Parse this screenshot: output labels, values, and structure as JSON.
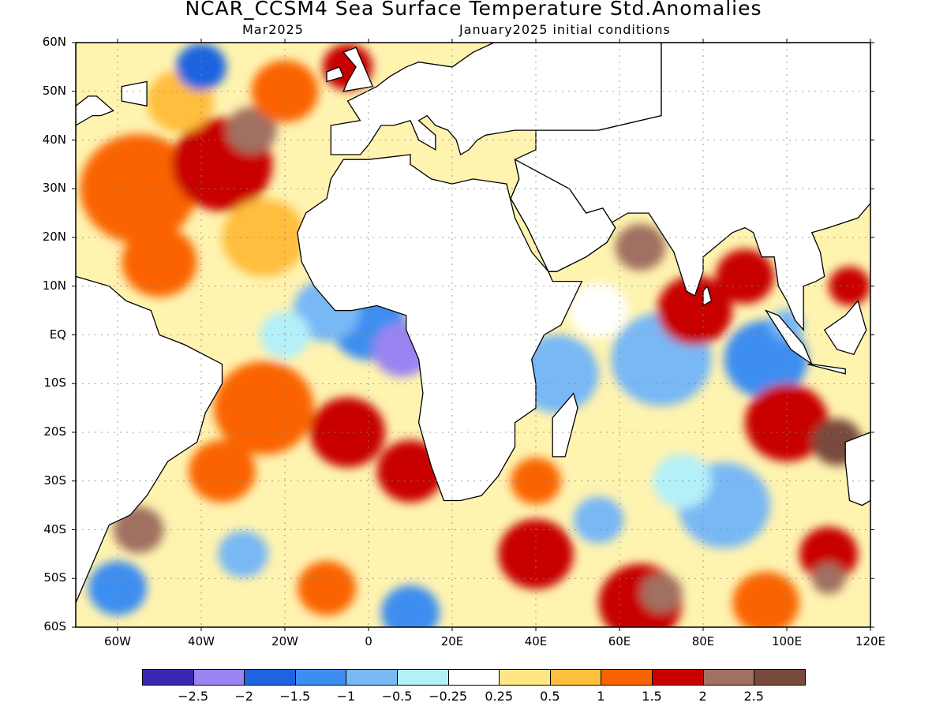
{
  "title": "NCAR_CCSM4 Sea Surface Temperature Std.Anomalies",
  "subtitle_left": "Mar2025",
  "subtitle_right": "January2025 initial conditions",
  "map": {
    "lon_min": -70,
    "lon_max": 120,
    "lat_min": -60,
    "lat_max": 60,
    "lat_ticks": [
      {
        "lat": 60,
        "label": "60N"
      },
      {
        "lat": 50,
        "label": "50N"
      },
      {
        "lat": 40,
        "label": "40N"
      },
      {
        "lat": 30,
        "label": "30N"
      },
      {
        "lat": 20,
        "label": "20N"
      },
      {
        "lat": 10,
        "label": "10N"
      },
      {
        "lat": 0,
        "label": "EQ"
      },
      {
        "lat": -10,
        "label": "10S"
      },
      {
        "lat": -20,
        "label": "20S"
      },
      {
        "lat": -30,
        "label": "30S"
      },
      {
        "lat": -40,
        "label": "40S"
      },
      {
        "lat": -50,
        "label": "50S"
      },
      {
        "lat": -60,
        "label": "60S"
      }
    ],
    "lon_ticks": [
      {
        "lon": -60,
        "label": "60W"
      },
      {
        "lon": -40,
        "label": "40W"
      },
      {
        "lon": -20,
        "label": "20W"
      },
      {
        "lon": 0,
        "label": "0"
      },
      {
        "lon": 20,
        "label": "20E"
      },
      {
        "lon": 40,
        "label": "40E"
      },
      {
        "lon": 60,
        "label": "60E"
      },
      {
        "lon": 80,
        "label": "80E"
      },
      {
        "lon": 100,
        "label": "100E"
      },
      {
        "lon": 120,
        "label": "120E"
      }
    ],
    "land_color": "#ffffff",
    "coast_color": "#000000",
    "anomaly_patches": [
      {
        "lon": -55,
        "lat": 30,
        "r": 14,
        "class": 9
      },
      {
        "lon": -35,
        "lat": 35,
        "r": 12,
        "class": 10
      },
      {
        "lon": -28,
        "lat": 42,
        "r": 6,
        "class": 11
      },
      {
        "lon": -50,
        "lat": 15,
        "r": 9,
        "class": 9
      },
      {
        "lon": -45,
        "lat": 48,
        "r": 8,
        "class": 8
      },
      {
        "lon": -40,
        "lat": 55,
        "r": 6,
        "class": 2
      },
      {
        "lon": -20,
        "lat": 50,
        "r": 8,
        "class": 9
      },
      {
        "lon": -5,
        "lat": 55,
        "r": 6,
        "class": 10
      },
      {
        "lon": -25,
        "lat": 20,
        "r": 10,
        "class": 8
      },
      {
        "lon": 0,
        "lat": 2,
        "r": 9,
        "class": 3
      },
      {
        "lon": 8,
        "lat": -3,
        "r": 7,
        "class": 1
      },
      {
        "lon": -10,
        "lat": 5,
        "r": 8,
        "class": 4
      },
      {
        "lon": -20,
        "lat": 0,
        "r": 6,
        "class": 5
      },
      {
        "lon": -25,
        "lat": -15,
        "r": 12,
        "class": 9
      },
      {
        "lon": -5,
        "lat": -20,
        "r": 9,
        "class": 10
      },
      {
        "lon": 10,
        "lat": -28,
        "r": 8,
        "class": 10
      },
      {
        "lon": -35,
        "lat": -28,
        "r": 8,
        "class": 9
      },
      {
        "lon": -55,
        "lat": -40,
        "r": 6,
        "class": 11
      },
      {
        "lon": -60,
        "lat": -52,
        "r": 7,
        "class": 3
      },
      {
        "lon": -30,
        "lat": -45,
        "r": 6,
        "class": 4
      },
      {
        "lon": -10,
        "lat": -52,
        "r": 7,
        "class": 9
      },
      {
        "lon": 10,
        "lat": -57,
        "r": 7,
        "class": 3
      },
      {
        "lon": 45,
        "lat": -8,
        "r": 10,
        "class": 4
      },
      {
        "lon": 70,
        "lat": -5,
        "r": 12,
        "class": 4
      },
      {
        "lon": 95,
        "lat": -5,
        "r": 10,
        "class": 3
      },
      {
        "lon": 55,
        "lat": 5,
        "r": 7,
        "class": 6
      },
      {
        "lon": 78,
        "lat": 5,
        "r": 9,
        "class": 10
      },
      {
        "lon": 90,
        "lat": 12,
        "r": 7,
        "class": 10
      },
      {
        "lon": 65,
        "lat": 18,
        "r": 6,
        "class": 11
      },
      {
        "lon": 100,
        "lat": -18,
        "r": 10,
        "class": 10
      },
      {
        "lon": 112,
        "lat": -22,
        "r": 6,
        "class": 12
      },
      {
        "lon": 85,
        "lat": -35,
        "r": 11,
        "class": 4
      },
      {
        "lon": 75,
        "lat": -30,
        "r": 7,
        "class": 5
      },
      {
        "lon": 55,
        "lat": -38,
        "r": 6,
        "class": 4
      },
      {
        "lon": 40,
        "lat": -45,
        "r": 9,
        "class": 10
      },
      {
        "lon": 65,
        "lat": -55,
        "r": 10,
        "class": 10
      },
      {
        "lon": 70,
        "lat": -53,
        "r": 5,
        "class": 11
      },
      {
        "lon": 95,
        "lat": -55,
        "r": 8,
        "class": 9
      },
      {
        "lon": 110,
        "lat": -45,
        "r": 7,
        "class": 10
      },
      {
        "lon": 110,
        "lat": -50,
        "r": 4,
        "class": 11
      },
      {
        "lon": 40,
        "lat": -30,
        "r": 6,
        "class": 9
      },
      {
        "lon": 115,
        "lat": 10,
        "r": 5,
        "class": 10
      },
      {
        "lon": 100,
        "lat": 2,
        "r": 4,
        "class": 4
      }
    ]
  },
  "colorbar": {
    "colors": [
      "#3a28b0",
      "#9a84f2",
      "#1e64e0",
      "#3c8ef0",
      "#78b8f5",
      "#b4f0f8",
      "#ffffff",
      "#ffe682",
      "#ffbe3c",
      "#fa6400",
      "#c80000",
      "#a07060",
      "#784a3c"
    ],
    "labels": [
      "-2.5",
      "-2",
      "-1.5",
      "-1",
      "-0.5",
      "-0.25",
      "0.25",
      "0.5",
      "1",
      "1.5",
      "2",
      "2.5"
    ]
  }
}
